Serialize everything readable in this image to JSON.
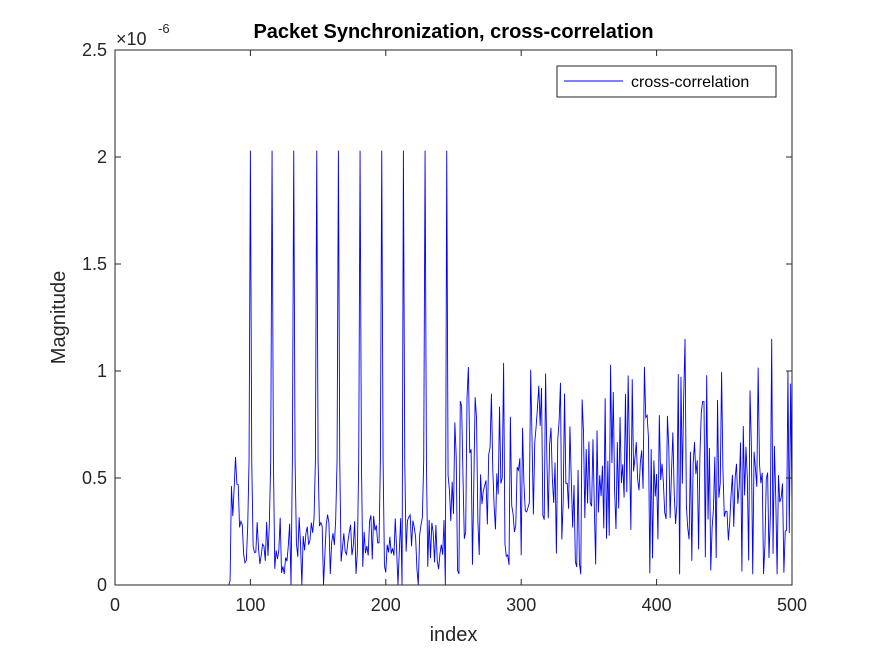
{
  "chart_data": {
    "type": "line",
    "title": "Packet Synchronization, cross-correlation",
    "xlabel": "index",
    "ylabel": "Magnitude",
    "xlim": [
      0,
      500
    ],
    "ylim": [
      0,
      2.5
    ],
    "y_scale_exponent": "-6",
    "x_ticks": [
      0,
      100,
      200,
      300,
      400,
      500
    ],
    "x_tick_labels": [
      "0",
      "100",
      "200",
      "300",
      "400",
      "500"
    ],
    "y_ticks": [
      0,
      0.5,
      1,
      1.5,
      2,
      2.5
    ],
    "y_tick_labels": [
      "0",
      "0.5",
      "1",
      "1.5",
      "2",
      "2.5"
    ],
    "grid": false,
    "legend": {
      "location": "top-right",
      "entries": [
        "cross-correlation"
      ]
    },
    "series": [
      {
        "name": "cross-correlation",
        "color": "#0000ff",
        "data": {
          "zero_until_index": 85,
          "x_start": 1,
          "x_end": 500,
          "spike_indices": [
            100,
            116,
            132,
            149,
            165,
            181,
            197,
            213,
            229,
            245
          ],
          "spike_value": 2.03,
          "secondary_peak_value": 0.58,
          "low_band": [
            0.05,
            0.33
          ],
          "noise_region_start": 246,
          "noise_mean": 0.5,
          "noise_range": [
            0.05,
            1.15
          ],
          "noise_max_points": {
            "x": [
              421,
              485
            ],
            "y": [
              1.15,
              1.15
            ]
          }
        }
      }
    ]
  }
}
